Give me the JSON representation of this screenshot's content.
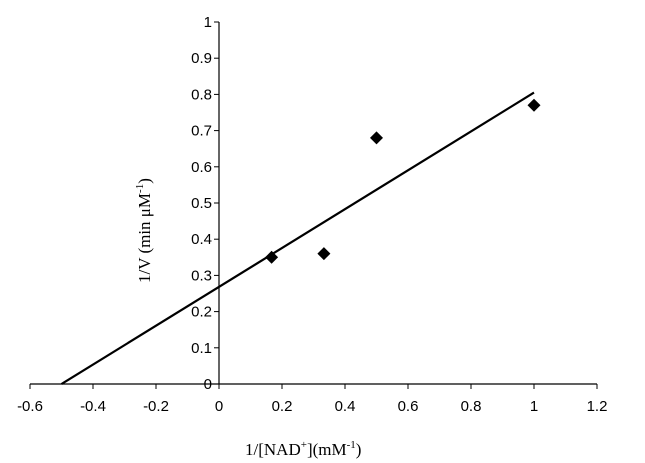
{
  "chart_data": {
    "type": "scatter",
    "title": "",
    "xlabel": "1/[NAD+](mM-1)",
    "ylabel": "1/V (min μM-1)",
    "xlim": [
      -0.6,
      1.2
    ],
    "ylim": [
      0,
      1
    ],
    "x_ticks": [
      "-0.6",
      "-0.4",
      "-0.2",
      "0",
      "0.2",
      "0.4",
      "0.6",
      "0.8",
      "1",
      "1.2"
    ],
    "y_ticks": [
      "0",
      "0.1",
      "0.2",
      "0.3",
      "0.4",
      "0.5",
      "0.6",
      "0.7",
      "0.8",
      "0.9",
      "1"
    ],
    "grid": false,
    "legend": "none",
    "marker": "diamond",
    "colors": {
      "points": "#000000",
      "line": "#000000",
      "axes": "#000000"
    },
    "series": [
      {
        "x": [
          0.167,
          0.333,
          0.5,
          1.0
        ],
        "y": [
          0.35,
          0.36,
          0.68,
          0.77
        ]
      }
    ],
    "fit_line": {
      "x": [
        -0.5,
        1.0
      ],
      "y": [
        0.0,
        0.805
      ]
    }
  }
}
